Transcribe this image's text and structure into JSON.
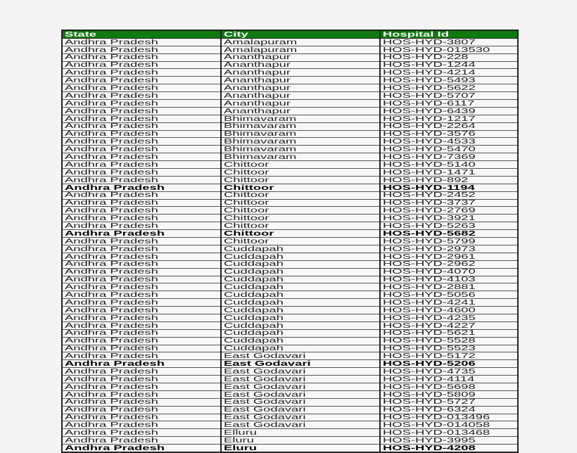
{
  "table": {
    "header_color": "#0f7a0f",
    "headers": [
      "State",
      "City",
      "Hospital Id"
    ],
    "rows": [
      {
        "state": "Andhra Pradesh",
        "city": "Amalapuram",
        "id": "HOS-HYD-3807",
        "bold": false
      },
      {
        "state": "Andhra Pradesh",
        "city": "Amalapuram",
        "id": "HOS-HYD-013530",
        "bold": false
      },
      {
        "state": "Andhra Pradesh",
        "city": "Ananthapur",
        "id": "HOS-HYD-228",
        "bold": false
      },
      {
        "state": "Andhra Pradesh",
        "city": "Ananthapur",
        "id": "HOS-HYD-1244",
        "bold": false
      },
      {
        "state": "Andhra Pradesh",
        "city": "Ananthapur",
        "id": "HOS-HYD-4214",
        "bold": false
      },
      {
        "state": "Andhra Pradesh",
        "city": "Ananthapur",
        "id": "HOS-HYD-5493",
        "bold": false
      },
      {
        "state": "Andhra Pradesh",
        "city": "Ananthapur",
        "id": "HOS-HYD-5622",
        "bold": false
      },
      {
        "state": "Andhra Pradesh",
        "city": "Ananthapur",
        "id": "HOS-HYD-5707",
        "bold": false
      },
      {
        "state": "Andhra Pradesh",
        "city": "Ananthapur",
        "id": "HOS-HYD-6117",
        "bold": false
      },
      {
        "state": "Andhra Pradesh",
        "city": "Ananthapur",
        "id": "HOS-HYD-6439",
        "bold": false
      },
      {
        "state": "Andhra Pradesh",
        "city": "Bhimavaram",
        "id": "HOS-HYD-1217",
        "bold": false
      },
      {
        "state": "Andhra Pradesh",
        "city": "Bhimavaram",
        "id": "HOS-HYD-2264",
        "bold": false
      },
      {
        "state": "Andhra Pradesh",
        "city": "Bhimavaram",
        "id": "HOS-HYD-3576",
        "bold": false
      },
      {
        "state": "Andhra Pradesh",
        "city": "Bhimavaram",
        "id": "HOS-HYD-4533",
        "bold": false
      },
      {
        "state": "Andhra Pradesh",
        "city": "Bhimavaram",
        "id": "HOS-HYD-5470",
        "bold": false
      },
      {
        "state": "Andhra Pradesh",
        "city": "Bhimavaram",
        "id": "HOS-HYD-7369",
        "bold": false
      },
      {
        "state": "Andhra Pradesh",
        "city": "Chittoor",
        "id": "HOS-HYD-5140",
        "bold": false
      },
      {
        "state": "Andhra Pradesh",
        "city": "Chittoor",
        "id": "HOS-HYD-1471",
        "bold": false
      },
      {
        "state": "Andhra Pradesh",
        "city": "Chittoor",
        "id": "HOS-HYD-892",
        "bold": false
      },
      {
        "state": "Andhra Pradesh",
        "city": "Chittoor",
        "id": "HOS-HYD-1194",
        "bold": true
      },
      {
        "state": "Andhra Pradesh",
        "city": "Chittoor",
        "id": "HOS-HYD-2452",
        "bold": false
      },
      {
        "state": "Andhra Pradesh",
        "city": "Chittoor",
        "id": "HOS-HYD-3737",
        "bold": false
      },
      {
        "state": "Andhra Pradesh",
        "city": "Chittoor",
        "id": "HOS-HYD-2769",
        "bold": false
      },
      {
        "state": "Andhra Pradesh",
        "city": "Chittoor",
        "id": "HOS-HYD-3921",
        "bold": false
      },
      {
        "state": "Andhra Pradesh",
        "city": "Chittoor",
        "id": "HOS-HYD-5263",
        "bold": false
      },
      {
        "state": "Andhra Pradesh",
        "city": "Chittoor",
        "id": "HOS-HYD-5682",
        "bold": true
      },
      {
        "state": "Andhra Pradesh",
        "city": "Chittoor",
        "id": "HOS-HYD-5799",
        "bold": false
      },
      {
        "state": "Andhra Pradesh",
        "city": "Cuddapah",
        "id": "HOS-HYD-2973",
        "bold": false
      },
      {
        "state": "Andhra Pradesh",
        "city": "Cuddapah",
        "id": "HOS-HYD-2961",
        "bold": false
      },
      {
        "state": "Andhra Pradesh",
        "city": "Cuddapah",
        "id": "HOS-HYD-2962",
        "bold": false
      },
      {
        "state": "Andhra Pradesh",
        "city": "Cuddapah",
        "id": "HOS-HYD-4070",
        "bold": false
      },
      {
        "state": "Andhra Pradesh",
        "city": "Cuddapah",
        "id": "HOS-HYD-4103",
        "bold": false
      },
      {
        "state": "Andhra Pradesh",
        "city": "Cuddapah",
        "id": "HOS-HYD-2881",
        "bold": false
      },
      {
        "state": "Andhra Pradesh",
        "city": "Cuddapah",
        "id": "HOS-HYD-5056",
        "bold": false
      },
      {
        "state": "Andhra Pradesh",
        "city": "Cuddapah",
        "id": "HOS-HYD-4241",
        "bold": false
      },
      {
        "state": "Andhra Pradesh",
        "city": "Cuddapah",
        "id": "HOS-HYD-4600",
        "bold": false
      },
      {
        "state": "Andhra Pradesh",
        "city": "Cuddapah",
        "id": "HOS-HYD-4235",
        "bold": false
      },
      {
        "state": "Andhra Pradesh",
        "city": "Cuddapah",
        "id": "HOS-HYD-4227",
        "bold": false
      },
      {
        "state": "Andhra Pradesh",
        "city": "Cuddapah",
        "id": "HOS-HYD-5621",
        "bold": false
      },
      {
        "state": "Andhra Pradesh",
        "city": "Cuddapah",
        "id": "HOS-HYD-5528",
        "bold": false
      },
      {
        "state": "Andhra Pradesh",
        "city": "Cuddapah",
        "id": "HOS-HYD-5523",
        "bold": false
      },
      {
        "state": "Andhra Pradesh",
        "city": "East Godavari",
        "id": "HOS-HYD-5172",
        "bold": false
      },
      {
        "state": "Andhra Pradesh",
        "city": "East Godavari",
        "id": "HOS-HYD-5206",
        "bold": true
      },
      {
        "state": "Andhra Pradesh",
        "city": "East Godavari",
        "id": "HOS-HYD-4735",
        "bold": false
      },
      {
        "state": "Andhra Pradesh",
        "city": "East Godavari",
        "id": "HOS-HYD-4114",
        "bold": false
      },
      {
        "state": "Andhra Pradesh",
        "city": "East Godavari",
        "id": "HOS-HYD-5698",
        "bold": false
      },
      {
        "state": "Andhra Pradesh",
        "city": "East Godavari",
        "id": "HOS-HYD-5809",
        "bold": false
      },
      {
        "state": "Andhra Pradesh",
        "city": "East Godavari",
        "id": "HOS-HYD-5727",
        "bold": false
      },
      {
        "state": "Andhra Pradesh",
        "city": "East Godavari",
        "id": "HOS-HYD-6324",
        "bold": false
      },
      {
        "state": "Andhra Pradesh",
        "city": "East Godavari",
        "id": "HOS-HYD-013496",
        "bold": false
      },
      {
        "state": "Andhra Pradesh",
        "city": "East Godavari",
        "id": "HOS-HYD-014058",
        "bold": false
      },
      {
        "state": "Andhra Pradesh",
        "city": "Elluru",
        "id": "HOS-HYD-013468",
        "bold": false
      },
      {
        "state": "Andhra Pradesh",
        "city": "Eluru",
        "id": "HOS-HYD-3995",
        "bold": false
      },
      {
        "state": "Andhra Pradesh",
        "city": "Eluru",
        "id": "HOS-HYD-4208",
        "bold": true
      }
    ]
  }
}
